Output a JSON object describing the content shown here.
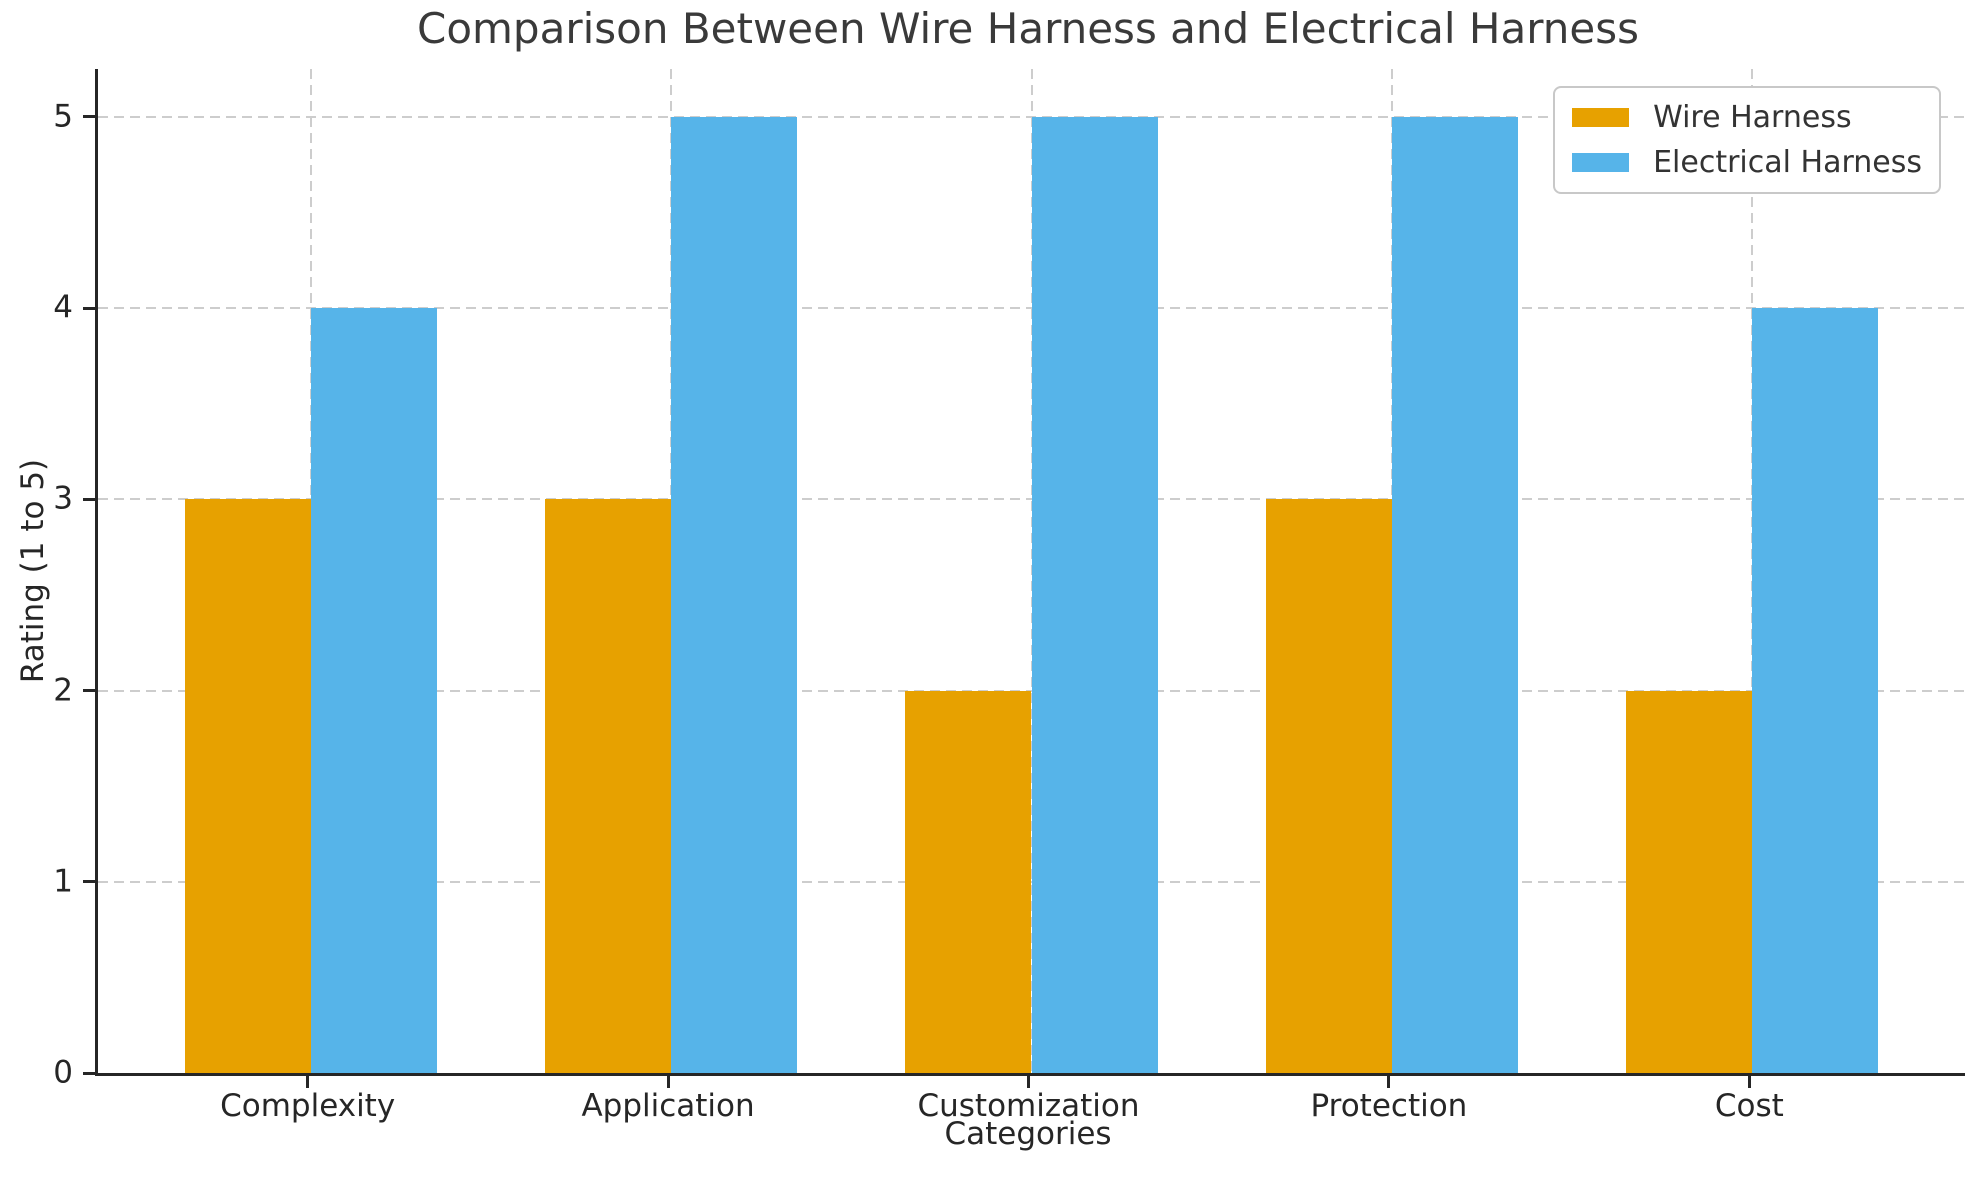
{
  "chart_data": {
    "type": "bar",
    "title": "Comparison Between Wire Harness and Electrical Harness",
    "xlabel": "Categories",
    "ylabel": "Rating (1 to 5)",
    "categories": [
      "Complexity",
      "Application",
      "Customization",
      "Protection",
      "Cost"
    ],
    "series": [
      {
        "name": "Wire Harness",
        "color": "#E7A100",
        "values": [
          3,
          3,
          2,
          3,
          2
        ]
      },
      {
        "name": "Electrical Harness",
        "color": "#56B4E9",
        "values": [
          4,
          5,
          5,
          5,
          4
        ]
      }
    ],
    "yticks": [
      "0",
      "1",
      "2",
      "3",
      "4",
      "5"
    ],
    "ylim": [
      0,
      5.25
    ],
    "xlim": [
      -0.59,
      4.59
    ],
    "bar_width": 0.35,
    "grid": "dashed",
    "grid_color": "#cdcdcd",
    "legend_position": "upper right",
    "colors": {
      "axis": "#262626",
      "title_text": "#3a3a3a",
      "tick_text": "#262626",
      "legend_border": "#c8c8c8",
      "background": "#ffffff"
    }
  }
}
